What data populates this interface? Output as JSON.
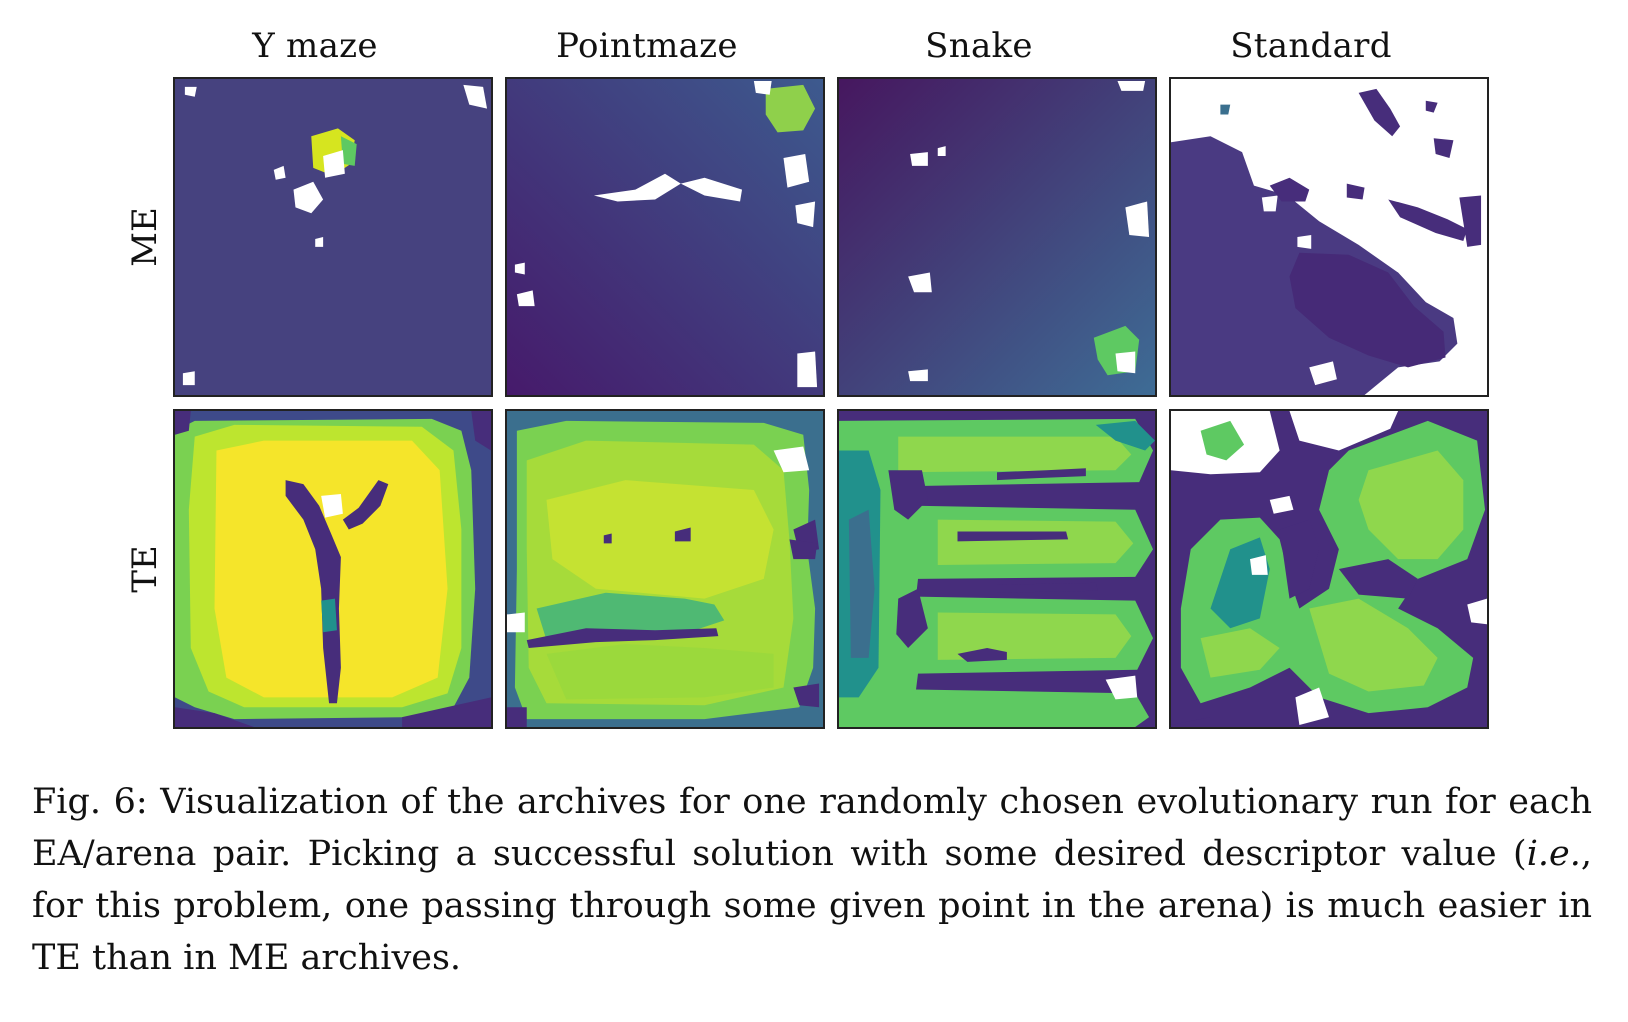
{
  "figure": {
    "columns": [
      "Y maze",
      "Pointmaze",
      "Snake",
      "Standard"
    ],
    "rows": [
      "ME",
      "TE"
    ],
    "colors": {
      "viridis_dark": "#440154",
      "viridis_purple": "#472d7b",
      "viridis_blue": "#3b528b",
      "viridis_teal": "#21918c",
      "viridis_green": "#5ec962",
      "viridis_lime": "#a0da39",
      "viridis_yellow": "#fde725",
      "empty_cell": "#ffffff"
    }
  },
  "caption": {
    "part1": "Fig. 6: Visualization of the archives for one randomly chosen evolutionary run for each EA/arena pair. Picking a successful solution with some desired descriptor value (",
    "ie": "i.e.",
    "part2": ", for this problem, one passing through some given point in the arena) is much easier in TE than in ME archives."
  }
}
